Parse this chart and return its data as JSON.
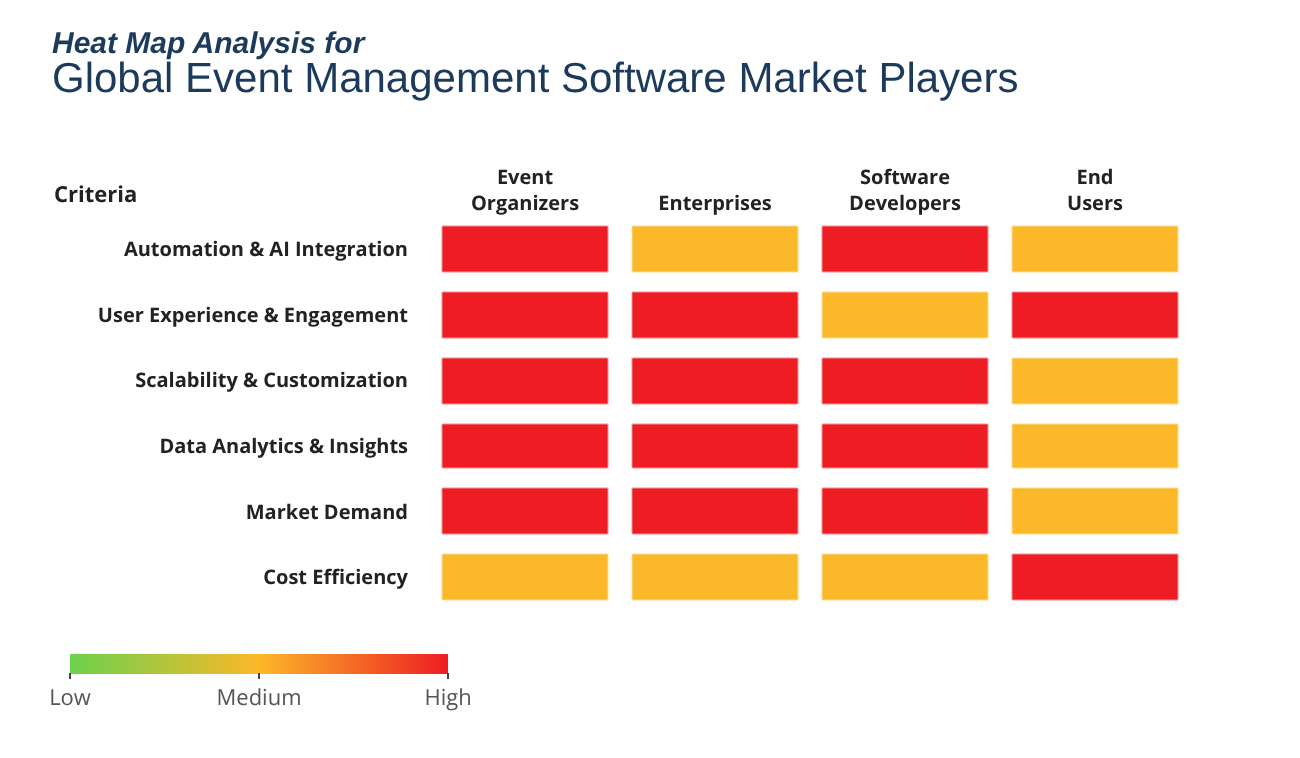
{
  "chart_data": {
    "type": "heatmap",
    "title": "Heat Map Analysis for",
    "subtitle": "Global Event Management Software Market Players",
    "ylabel": "Criteria",
    "categories": [
      "Event Organizers",
      "Enterprises",
      "Software Developers",
      "End Users"
    ],
    "y_categories": [
      "Automation & AI Integration",
      "User Experience & Engagement",
      "Scalability & Customization",
      "Data Analytics & Insights",
      "Market Demand",
      "Cost Efficiency"
    ],
    "cells": [
      [
        3,
        2,
        3,
        2
      ],
      [
        3,
        3,
        2,
        3
      ],
      [
        3,
        3,
        3,
        2
      ],
      [
        3,
        3,
        3,
        2
      ],
      [
        3,
        3,
        3,
        2
      ],
      [
        2,
        2,
        2,
        3
      ]
    ],
    "clim": [
      1,
      3
    ],
    "cticks": [
      {
        "value": 3,
        "label": "High"
      },
      {
        "value": 2,
        "label": "Medium"
      },
      {
        "value": 1,
        "label": "Low"
      }
    ],
    "colors": [
      "#ee1d23",
      "#fbb829",
      "#6cd14e"
    ]
  }
}
